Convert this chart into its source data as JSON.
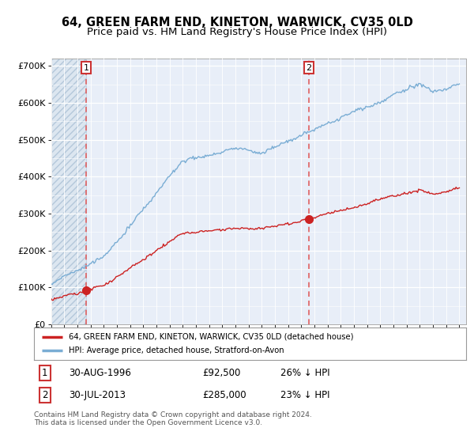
{
  "title": "64, GREEN FARM END, KINETON, WARWICK, CV35 0LD",
  "subtitle": "Price paid vs. HM Land Registry's House Price Index (HPI)",
  "ylim": [
    0,
    720000
  ],
  "xlim_start": 1994.0,
  "xlim_end": 2025.5,
  "sale1_date": 1996.66,
  "sale1_price": 92500,
  "sale1_label": "1",
  "sale2_date": 2013.58,
  "sale2_price": 285000,
  "sale2_label": "2",
  "hpi_color": "#7aadd4",
  "price_color": "#cc2222",
  "dashed_color": "#e06060",
  "hatch_facecolor": "#dce6f0",
  "hatch_edgecolor": "#b0c4d8",
  "plot_bg": "#e8eef8",
  "legend_line1": "64, GREEN FARM END, KINETON, WARWICK, CV35 0LD (detached house)",
  "legend_line2": "HPI: Average price, detached house, Stratford-on-Avon",
  "footer": "Contains HM Land Registry data © Crown copyright and database right 2024.\nThis data is licensed under the Open Government Licence v3.0.",
  "title_fontsize": 10.5,
  "subtitle_fontsize": 9.5,
  "tick_fontsize": 8,
  "label_fontsize": 8.5,
  "footer_fontsize": 6.5
}
